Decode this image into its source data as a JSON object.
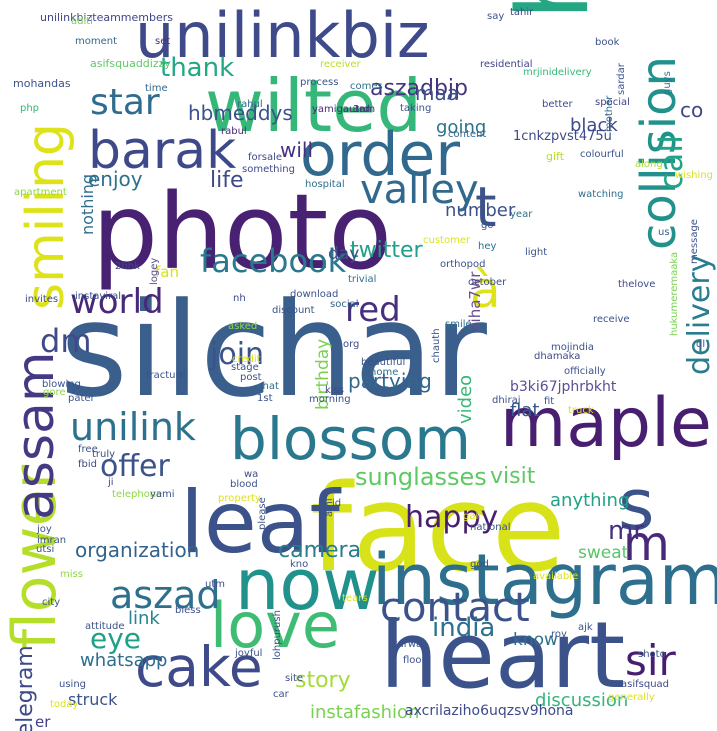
{
  "words": [
    {
      "text": "silchar",
      "color": "#3b5f8c"
    },
    {
      "text": "face",
      "color": "#d8e219"
    },
    {
      "text": "heart",
      "color": "#3b528b"
    },
    {
      "text": "https",
      "color": "#26a784"
    },
    {
      "text": "photo",
      "color": "#482172"
    },
    {
      "text": "instagram",
      "color": "#2e6f8e"
    },
    {
      "text": "maple",
      "color": "#481f70"
    },
    {
      "text": "wilted",
      "color": "#35b779"
    },
    {
      "text": "order",
      "color": "#30688e"
    },
    {
      "text": "leaf",
      "color": "#3b528b"
    },
    {
      "text": "now",
      "color": "#21918c"
    },
    {
      "text": "unilinkbiz",
      "color": "#3e4a89"
    },
    {
      "text": "love",
      "color": "#3fbc73"
    },
    {
      "text": "flower",
      "color": "#b5de2b"
    },
    {
      "text": "smiling",
      "color": "#dde318"
    },
    {
      "text": "collision",
      "color": "#21918c"
    },
    {
      "text": "blossom",
      "color": "#2a788e"
    },
    {
      "text": "barak",
      "color": "#3e4989"
    },
    {
      "text": "s",
      "color": "#3b528b"
    },
    {
      "text": "cake",
      "color": "#3e4a89"
    },
    {
      "text": "m",
      "color": "#482878"
    },
    {
      "text": "assam",
      "color": "#443983"
    },
    {
      "text": "facebook",
      "color": "#2a788e"
    },
    {
      "text": "valley",
      "color": "#31688e"
    },
    {
      "text": "contact",
      "color": "#3b528b"
    },
    {
      "text": "t",
      "color": "#3b528b"
    },
    {
      "text": "à",
      "color": "#dde318"
    },
    {
      "text": "sir",
      "color": "#481f70"
    },
    {
      "text": "aszad",
      "color": "#2e6f8e"
    },
    {
      "text": "delivery",
      "color": "#287d8e"
    },
    {
      "text": "unilink",
      "color": "#2c728e"
    },
    {
      "text": "world",
      "color": "#482878"
    },
    {
      "text": "call",
      "color": "#20a486"
    },
    {
      "text": "star",
      "color": "#2f6c8e"
    },
    {
      "text": "red",
      "color": "#46307e"
    },
    {
      "text": "offer",
      "color": "#3b528b"
    },
    {
      "text": "sunglasses",
      "color": "#5ec962"
    },
    {
      "text": "happy",
      "color": "#481f70"
    },
    {
      "text": "dm",
      "color": "#3e4a89"
    },
    {
      "text": "join",
      "color": "#3b528b"
    },
    {
      "text": "eye",
      "color": "#1fa088"
    },
    {
      "text": "india",
      "color": "#2c728e"
    },
    {
      "text": "life",
      "color": "#3e4a89"
    },
    {
      "text": "twitter",
      "color": "#1fa088"
    },
    {
      "text": "thank",
      "color": "#22a884"
    },
    {
      "text": "telegram",
      "color": "#3e4a89"
    },
    {
      "text": "aszadbjp",
      "color": "#46337f"
    },
    {
      "text": "story",
      "color": "#a5db36"
    },
    {
      "text": "hbmeddys",
      "color": "#3b528b"
    },
    {
      "text": "organization",
      "color": "#33638d"
    },
    {
      "text": "will",
      "color": "#46307e"
    },
    {
      "text": "maa",
      "color": "#3b528b"
    },
    {
      "text": "enjoy",
      "color": "#2e6f8e"
    },
    {
      "text": "partying",
      "color": "#31688e"
    },
    {
      "text": "anything",
      "color": "#20a386"
    },
    {
      "text": "visit",
      "color": "#5ec962"
    },
    {
      "text": "camera",
      "color": "#287c8e"
    },
    {
      "text": "link",
      "color": "#25848e"
    },
    {
      "text": "whatsapp",
      "color": "#2e6e8e"
    },
    {
      "text": "instafashion",
      "color": "#7ad151"
    },
    {
      "text": "discussion",
      "color": "#34b679"
    },
    {
      "text": "video",
      "color": "#37b878"
    },
    {
      "text": "fan",
      "color": "#d8e219"
    },
    {
      "text": "going",
      "color": "#2c728e"
    },
    {
      "text": "black",
      "color": "#3e4a89"
    },
    {
      "text": "number",
      "color": "#3b528b"
    },
    {
      "text": "flat",
      "color": "#38588c"
    },
    {
      "text": "sweat",
      "color": "#56c667"
    },
    {
      "text": "struck",
      "color": "#39558c"
    },
    {
      "text": "know",
      "color": "#2d708e"
    },
    {
      "text": "birthday",
      "color": "#7ad151"
    },
    {
      "text": "day",
      "color": "#3b528b"
    },
    {
      "text": "mr",
      "color": "#46307e"
    },
    {
      "text": "nothing",
      "color": "#2e6e8e"
    },
    {
      "text": "1cnkzpvst475u",
      "color": "#3e4a89"
    },
    {
      "text": "axcrilaziho6uqzsv9hona",
      "color": "#3e4a89"
    },
    {
      "text": "b3ki67jphrbkht",
      "color": "#5b4e94"
    },
    {
      "text": "2iha7wr",
      "color": "#6a4c93"
    },
    {
      "text": "er",
      "color": "#433e85"
    },
    {
      "text": "co",
      "color": "#404688"
    },
    {
      "text": "unilinkbizteammembers",
      "color": "#404688"
    },
    {
      "text": "asifsquaddizzy",
      "color": "#5ec962"
    },
    {
      "text": "mohandas",
      "color": "#3b528b"
    },
    {
      "text": "php",
      "color": "#35b779"
    },
    {
      "text": "apartment",
      "color": "#8fd744"
    },
    {
      "text": "aditi",
      "color": "#7ad151"
    },
    {
      "text": "moment",
      "color": "#31688e"
    },
    {
      "text": "set",
      "color": "#472c7a"
    },
    {
      "text": "say",
      "color": "#3b528b"
    },
    {
      "text": "tahir",
      "color": "#3e4a89"
    },
    {
      "text": "book",
      "color": "#3b528b"
    },
    {
      "text": "guys",
      "color": "#2c728e"
    },
    {
      "text": "process",
      "color": "#3b528b"
    },
    {
      "text": "receiver",
      "color": "#b8de29"
    },
    {
      "text": "comes",
      "color": "#2e6f8e"
    },
    {
      "text": "3rd",
      "color": "#482878"
    },
    {
      "text": "residential",
      "color": "#404688"
    },
    {
      "text": "mrjinidelivery",
      "color": "#37b878"
    },
    {
      "text": "sardar",
      "color": "#3b528b"
    },
    {
      "text": "time",
      "color": "#31688e"
    },
    {
      "text": "special",
      "color": "#404688"
    },
    {
      "text": "better",
      "color": "#3e4a89"
    },
    {
      "text": "mother",
      "color": "#33638d"
    },
    {
      "text": "colourful",
      "color": "#3b528b"
    },
    {
      "text": "gift",
      "color": "#b5de2b"
    },
    {
      "text": "rahul",
      "color": "#31688e"
    },
    {
      "text": "yamigautam",
      "color": "#482878"
    },
    {
      "text": "taking",
      "color": "#3b528b"
    },
    {
      "text": "content",
      "color": "#33638d"
    },
    {
      "text": "rabul",
      "color": "#482878"
    },
    {
      "text": "forsale",
      "color": "#3e4a89"
    },
    {
      "text": "something",
      "color": "#3e4a89"
    },
    {
      "text": "hospital",
      "color": "#2e6f8e"
    },
    {
      "text": "along",
      "color": "#a8db34"
    },
    {
      "text": "wishing",
      "color": "#dde318"
    },
    {
      "text": "watching",
      "color": "#2e6f8e"
    },
    {
      "text": "year",
      "color": "#2e6f8e"
    },
    {
      "text": "customer",
      "color": "#dde318"
    },
    {
      "text": "go",
      "color": "#3b528b"
    },
    {
      "text": "hey",
      "color": "#2e6f8e"
    },
    {
      "text": "light",
      "color": "#3b528b"
    },
    {
      "text": "us",
      "color": "#33638d"
    },
    {
      "text": "message",
      "color": "#3b528b"
    },
    {
      "text": "orthopod",
      "color": "#3b528b"
    },
    {
      "text": "october",
      "color": "#3e4a89"
    },
    {
      "text": "thelove",
      "color": "#3e4a89"
    },
    {
      "text": "2bhk",
      "color": "#3e4a89"
    },
    {
      "text": "logey",
      "color": "#5b4e94"
    },
    {
      "text": "trivial",
      "color": "#2e6f8e"
    },
    {
      "text": "download",
      "color": "#3b528b"
    },
    {
      "text": "social",
      "color": "#33638d"
    },
    {
      "text": "invites",
      "color": "#3e4a89"
    },
    {
      "text": "instaviral",
      "color": "#3b528b"
    },
    {
      "text": "nh",
      "color": "#3e4a89"
    },
    {
      "text": "discount",
      "color": "#3b528b"
    },
    {
      "text": "asked",
      "color": "#8fd744"
    },
    {
      "text": "smile",
      "color": "#2e6f8e"
    },
    {
      "text": "receive",
      "color": "#3b528b"
    },
    {
      "text": "credit",
      "color": "#dde318"
    },
    {
      "text": "stage",
      "color": "#3b528b"
    },
    {
      "text": "org",
      "color": "#3e4a89"
    },
    {
      "text": "mojindia",
      "color": "#3b528b"
    },
    {
      "text": "dhamaka",
      "color": "#3e4a89"
    },
    {
      "text": "blowing",
      "color": "#3b528b"
    },
    {
      "text": "gore",
      "color": "#8fd744"
    },
    {
      "text": "fracture",
      "color": "#3b528b"
    },
    {
      "text": "post",
      "color": "#3b528b"
    },
    {
      "text": "home",
      "color": "#2e6f8e"
    },
    {
      "text": "beautiful",
      "color": "#3b528b"
    },
    {
      "text": "chauth",
      "color": "#3b528b"
    },
    {
      "text": "officially",
      "color": "#3b528b"
    },
    {
      "text": "hukumeremaaka",
      "color": "#7ad151"
    },
    {
      "text": "dl",
      "color": "#3b528b"
    },
    {
      "text": "patel",
      "color": "#3b528b"
    },
    {
      "text": "chat",
      "color": "#2e6f8e"
    },
    {
      "text": "1st",
      "color": "#3b528b"
    },
    {
      "text": "morning",
      "color": "#3b528b"
    },
    {
      "text": "kiss",
      "color": "#3e4a89"
    },
    {
      "text": "dhiraj",
      "color": "#3b528b"
    },
    {
      "text": "fit",
      "color": "#3b528b"
    },
    {
      "text": "truck",
      "color": "#dde318"
    },
    {
      "text": "free",
      "color": "#3b528b"
    },
    {
      "text": "truly",
      "color": "#3e4a89"
    },
    {
      "text": "fbid",
      "color": "#3e4a89"
    },
    {
      "text": "ji",
      "color": "#3e4a89"
    },
    {
      "text": "telephone",
      "color": "#8fd744"
    },
    {
      "text": "yami",
      "color": "#3b528b"
    },
    {
      "text": "blood",
      "color": "#3b528b"
    },
    {
      "text": "wa",
      "color": "#3e4a89"
    },
    {
      "text": "property",
      "color": "#dde318"
    },
    {
      "text": "id",
      "color": "#3e4a89"
    },
    {
      "text": "joy",
      "color": "#3b528b"
    },
    {
      "text": "imran",
      "color": "#3b528b"
    },
    {
      "text": "utsi",
      "color": "#3b528b"
    },
    {
      "text": "please",
      "color": "#3b528b"
    },
    {
      "text": "ami",
      "color": "#3b528b"
    },
    {
      "text": "gali",
      "color": "#dde318"
    },
    {
      "text": "national",
      "color": "#3b528b"
    },
    {
      "text": "available",
      "color": "#dde318"
    },
    {
      "text": "kno",
      "color": "#3b528b"
    },
    {
      "text": "god",
      "color": "#3b528b"
    },
    {
      "text": "utm",
      "color": "#3e4a89"
    },
    {
      "text": "miss",
      "color": "#8fd744"
    },
    {
      "text": "city",
      "color": "#3b528b"
    },
    {
      "text": "bless",
      "color": "#3b528b"
    },
    {
      "text": "tears",
      "color": "#dde318"
    },
    {
      "text": "attitude",
      "color": "#3b528b"
    },
    {
      "text": "joyful",
      "color": "#3b528b"
    },
    {
      "text": "lohpurush",
      "color": "#3b528b"
    },
    {
      "text": "ajk",
      "color": "#3b528b"
    },
    {
      "text": "shoto",
      "color": "#3b528b"
    },
    {
      "text": "roy",
      "color": "#3b528b"
    },
    {
      "text": "karwa",
      "color": "#3b528b"
    },
    {
      "text": "floor",
      "color": "#3b528b"
    },
    {
      "text": "asifsquad",
      "color": "#3e4a89"
    },
    {
      "text": "car",
      "color": "#3b528b"
    },
    {
      "text": "using",
      "color": "#3b528b"
    },
    {
      "text": "site",
      "color": "#3b528b"
    },
    {
      "text": "generally",
      "color": "#dde318"
    },
    {
      "text": "today",
      "color": "#dde318"
    }
  ]
}
